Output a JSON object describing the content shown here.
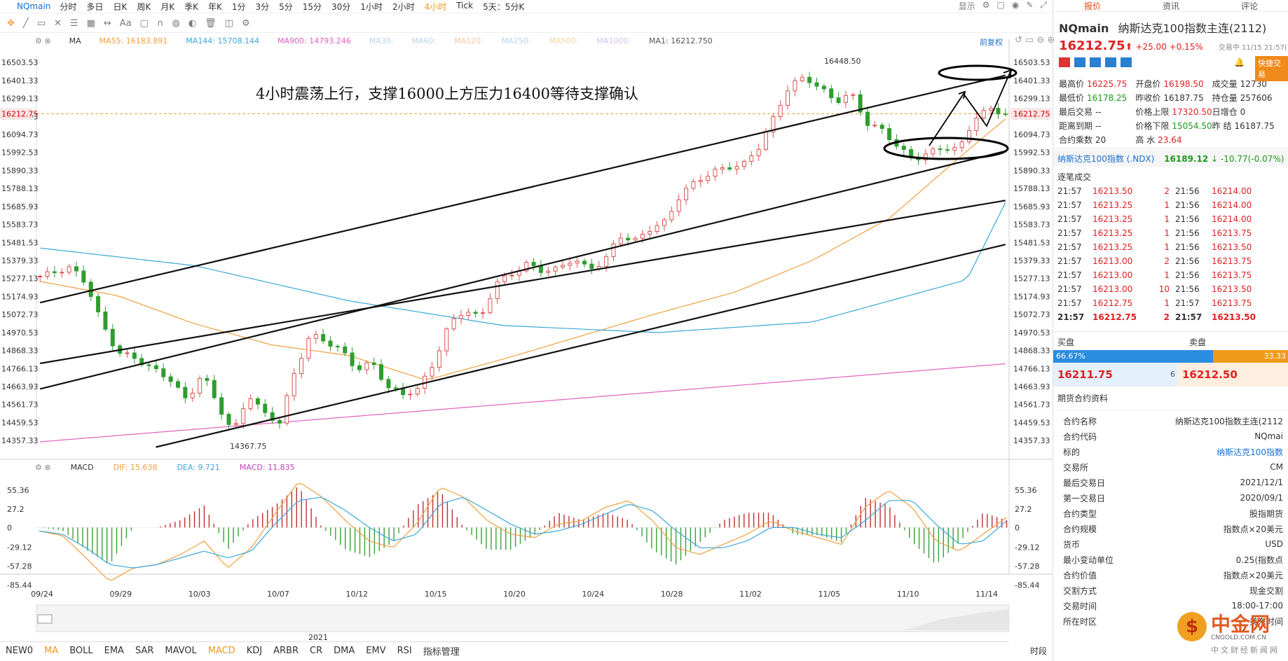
{
  "toolbar": {
    "symbol": "NQmain",
    "periods": [
      "分时",
      "多日",
      "日K",
      "周K",
      "月K",
      "季K",
      "年K",
      "1分",
      "3分",
      "5分",
      "15分",
      "30分",
      "1小时",
      "2小时",
      "4小时",
      "Tick",
      "5天：5分K"
    ],
    "active_period": "4小时",
    "display_label": "显示"
  },
  "drawbar": {
    "text_tool": "Aa"
  },
  "main_legend": {
    "ma_label": "MA",
    "items": [
      {
        "text": "MA55: 16183.891",
        "color": "#f0a040"
      },
      {
        "text": "MA144: 15708.144",
        "color": "#3aa8d8"
      },
      {
        "text": "MA900: 14793.246",
        "color": "#e060c0"
      },
      {
        "text": "MA30:",
        "color": "#b8d4ec"
      },
      {
        "text": "MA60:",
        "color": "#b8d4ec"
      },
      {
        "text": "MA120:",
        "color": "#f4c8a0"
      },
      {
        "text": "MA250:",
        "color": "#b8d4ec"
      },
      {
        "text": "MA500:",
        "color": "#f4d4a0"
      },
      {
        "text": "MA1000:",
        "color": "#d4c0ec"
      },
      {
        "text": "MA1: 16212.750",
        "color": "#555555"
      }
    ],
    "restore_label": "前复权"
  },
  "macd_legend": {
    "label": "MACD",
    "items": [
      {
        "text": "DIF: 15.638",
        "color": "#f0a040"
      },
      {
        "text": "DEA: 9.721",
        "color": "#3aa8d8"
      },
      {
        "text": "MACD: 11.835",
        "color": "#c040c0"
      }
    ]
  },
  "annotation": "4小时震荡上行，支撑16000上方压力16400等待支撑确认",
  "bottom_tabs": {
    "items": [
      "NEW0",
      "MA",
      "BOLL",
      "EMA",
      "SAR",
      "MAVOL",
      "MACD",
      "KDJ",
      "ARBR",
      "CR",
      "DMA",
      "EMV",
      "RSI",
      "指标管理"
    ],
    "active": [
      "MA",
      "MACD"
    ],
    "right_label": "时段"
  },
  "nav": {
    "year_label": "2021"
  },
  "watermark": {
    "brand": "中金网",
    "site": "CNGOLD.COM.CN",
    "slogan": "中文财经新闻网"
  },
  "chart_data": {
    "type": "candlestick",
    "title": "",
    "price_axis": {
      "ticks": [
        16503.53,
        16401.33,
        16299.13,
        16196.93,
        16094.73,
        15992.53,
        15890.33,
        15788.13,
        15685.93,
        15583.73,
        15481.53,
        15379.33,
        15277.13,
        15174.93,
        15072.73,
        14970.53,
        14868.33,
        14766.13,
        14663.93,
        14561.73,
        14459.53,
        14357.33
      ],
      "range": [
        14322,
        16540
      ],
      "current_label": "16212.75"
    },
    "x_axis": {
      "labels": [
        "09/24",
        "09/29",
        "10/03",
        "10/07",
        "10/12",
        "10/15",
        "10/20",
        "10/24",
        "10/28",
        "11/02",
        "11/05",
        "11/10",
        "11/14"
      ],
      "bars": 134
    },
    "annotations": {
      "high": "16448.50",
      "low": "14367.75"
    },
    "close_keypoints": [
      [
        0,
        15290
      ],
      [
        8,
        15340
      ],
      [
        12,
        15250
      ],
      [
        16,
        15020
      ],
      [
        20,
        14860
      ],
      [
        24,
        14830
      ],
      [
        28,
        14780
      ],
      [
        34,
        14700
      ],
      [
        38,
        14580
      ],
      [
        42,
        14740
      ],
      [
        46,
        14560
      ],
      [
        50,
        14400
      ],
      [
        54,
        14620
      ],
      [
        58,
        14510
      ],
      [
        62,
        14460
      ],
      [
        66,
        14750
      ],
      [
        70,
        14960
      ],
      [
        74,
        14920
      ],
      [
        78,
        14870
      ],
      [
        82,
        14760
      ],
      [
        86,
        14800
      ],
      [
        90,
        14660
      ],
      [
        94,
        14620
      ],
      [
        98,
        14650
      ],
      [
        102,
        14800
      ],
      [
        106,
        15020
      ],
      [
        110,
        15100
      ],
      [
        114,
        15050
      ],
      [
        118,
        15250
      ],
      [
        122,
        15300
      ],
      [
        126,
        15360
      ],
      [
        130,
        15320
      ],
      [
        134,
        15330
      ],
      [
        138,
        15390
      ],
      [
        142,
        15330
      ],
      [
        146,
        15370
      ],
      [
        150,
        15520
      ],
      [
        154,
        15490
      ],
      [
        158,
        15560
      ],
      [
        162,
        15600
      ],
      [
        166,
        15760
      ],
      [
        170,
        15830
      ],
      [
        174,
        15880
      ],
      [
        178,
        15910
      ],
      [
        182,
        15920
      ],
      [
        186,
        16020
      ],
      [
        190,
        16190
      ],
      [
        194,
        16370
      ],
      [
        198,
        16420
      ],
      [
        202,
        16360
      ],
      [
        206,
        16280
      ],
      [
        210,
        16330
      ],
      [
        214,
        16160
      ],
      [
        218,
        16120
      ],
      [
        222,
        16030
      ],
      [
        226,
        15950
      ],
      [
        230,
        15990
      ],
      [
        234,
        16020
      ],
      [
        238,
        16010
      ],
      [
        242,
        16190
      ],
      [
        246,
        16240
      ],
      [
        250,
        16212
      ]
    ],
    "series": [
      {
        "name": "MA55",
        "color": "#f0a040",
        "keypoints": [
          [
            0,
            15260
          ],
          [
            20,
            15180
          ],
          [
            40,
            15020
          ],
          [
            60,
            14900
          ],
          [
            80,
            14840
          ],
          [
            100,
            14700
          ],
          [
            120,
            14820
          ],
          [
            140,
            14950
          ],
          [
            160,
            15080
          ],
          [
            180,
            15200
          ],
          [
            200,
            15380
          ],
          [
            220,
            15620
          ],
          [
            240,
            16000
          ],
          [
            250,
            16183
          ]
        ]
      },
      {
        "name": "MA144",
        "color": "#3aa8d8",
        "keypoints": [
          [
            0,
            15450
          ],
          [
            40,
            15350
          ],
          [
            80,
            15150
          ],
          [
            120,
            15010
          ],
          [
            160,
            14970
          ],
          [
            200,
            15030
          ],
          [
            240,
            15270
          ],
          [
            250,
            15708
          ]
        ]
      },
      {
        "name": "MA900",
        "color": "#e060c0",
        "keypoints": [
          [
            0,
            14350
          ],
          [
            250,
            14793
          ]
        ]
      }
    ],
    "drawn_lines": [
      {
        "name": "upper-channel-top",
        "points": [
          [
            0,
            15140
          ],
          [
            250,
            16430
          ]
        ]
      },
      {
        "name": "upper-channel-bottom",
        "points": [
          [
            0,
            14650
          ],
          [
            250,
            16000
          ]
        ]
      },
      {
        "name": "lower-channel-top",
        "points": [
          [
            0,
            14795
          ],
          [
            250,
            15720
          ]
        ]
      },
      {
        "name": "lower-channel-bottom",
        "points": [
          [
            30,
            14320
          ],
          [
            250,
            15470
          ]
        ]
      }
    ],
    "macd": {
      "axis_ticks": [
        55.36,
        27.2,
        0.0,
        -29.12,
        -57.28,
        -85.44
      ],
      "range": [
        -92,
        72
      ],
      "dif_keypoints": [
        [
          0,
          -5
        ],
        [
          10,
          -12
        ],
        [
          20,
          -45
        ],
        [
          30,
          -80
        ],
        [
          40,
          -60
        ],
        [
          50,
          -55
        ],
        [
          60,
          -40
        ],
        [
          70,
          -20
        ],
        [
          80,
          -60
        ],
        [
          90,
          -30
        ],
        [
          100,
          20
        ],
        [
          110,
          68
        ],
        [
          120,
          45
        ],
        [
          130,
          10
        ],
        [
          140,
          -20
        ],
        [
          150,
          -30
        ],
        [
          160,
          5
        ],
        [
          170,
          60
        ],
        [
          180,
          45
        ],
        [
          190,
          10
        ],
        [
          200,
          -10
        ],
        [
          210,
          -15
        ],
        [
          220,
          5
        ],
        [
          230,
          10
        ],
        [
          240,
          30
        ],
        [
          250,
          40
        ],
        [
          260,
          10
        ],
        [
          270,
          -30
        ],
        [
          280,
          -40
        ],
        [
          290,
          -25
        ],
        [
          300,
          -10
        ],
        [
          310,
          10
        ],
        [
          320,
          -5
        ],
        [
          330,
          -15
        ],
        [
          340,
          -25
        ],
        [
          350,
          30
        ],
        [
          360,
          55
        ],
        [
          370,
          30
        ],
        [
          380,
          -20
        ],
        [
          390,
          -35
        ],
        [
          400,
          -10
        ],
        [
          410,
          15
        ]
      ],
      "dea_keypoints": [
        [
          0,
          -5
        ],
        [
          10,
          -10
        ],
        [
          20,
          -30
        ],
        [
          30,
          -55
        ],
        [
          40,
          -60
        ],
        [
          50,
          -55
        ],
        [
          60,
          -45
        ],
        [
          70,
          -35
        ],
        [
          80,
          -45
        ],
        [
          90,
          -35
        ],
        [
          100,
          5
        ],
        [
          110,
          40
        ],
        [
          120,
          45
        ],
        [
          130,
          25
        ],
        [
          140,
          0
        ],
        [
          150,
          -20
        ],
        [
          160,
          -10
        ],
        [
          170,
          35
        ],
        [
          180,
          45
        ],
        [
          190,
          25
        ],
        [
          200,
          5
        ],
        [
          210,
          -10
        ],
        [
          220,
          -5
        ],
        [
          230,
          5
        ],
        [
          240,
          20
        ],
        [
          250,
          35
        ],
        [
          260,
          25
        ],
        [
          270,
          -5
        ],
        [
          280,
          -30
        ],
        [
          290,
          -30
        ],
        [
          300,
          -20
        ],
        [
          310,
          0
        ],
        [
          320,
          0
        ],
        [
          330,
          -10
        ],
        [
          340,
          -15
        ],
        [
          350,
          10
        ],
        [
          360,
          40
        ],
        [
          370,
          40
        ],
        [
          380,
          5
        ],
        [
          390,
          -25
        ],
        [
          400,
          -20
        ],
        [
          410,
          10
        ]
      ]
    }
  },
  "panel": {
    "tabs": [
      "报价",
      "资讯",
      "评论"
    ],
    "symbol": "NQmain",
    "name": "纳斯达克100指数主连(2112)",
    "price": "16212.75",
    "change": "+25.00 +0.15%",
    "time_info": "交易中 11/15 21:57(",
    "quick_trade": "快捷交易",
    "quote_rows": [
      [
        [
          "最高价",
          "16225.75",
          "red"
        ],
        [
          "开盘价",
          "16198.50",
          "red"
        ],
        [
          "成交量",
          "12730",
          ""
        ]
      ],
      [
        [
          "最低价",
          "16178.25",
          "green"
        ],
        [
          "昨收价",
          "16187.75",
          ""
        ],
        [
          "持仓量",
          "257606",
          ""
        ]
      ],
      [
        [
          "最后交易",
          "--",
          ""
        ],
        [
          "价格上限",
          "17320.50",
          "red"
        ],
        [
          "日增仓",
          "0",
          ""
        ]
      ],
      [
        [
          "距离到期",
          "--",
          ""
        ],
        [
          "价格下限",
          "15054.50",
          "green"
        ],
        [
          "昨 结",
          "16187.75",
          ""
        ]
      ],
      [
        [
          "合约乘数",
          "20",
          ""
        ],
        [
          "高 水",
          "23.64",
          "red"
        ],
        [
          "",
          "",
          " "
        ]
      ]
    ],
    "index_name": "纳斯达克100指数 (.NDX)",
    "index_value": "16189.12",
    "index_change": "-10.77(-0.07%)",
    "trades_title": "逐笔成交",
    "trades": [
      [
        "21:57",
        "16213.50",
        "2",
        "21:56",
        "16214.00"
      ],
      [
        "21:57",
        "16213.25",
        "1",
        "21:56",
        "16214.00"
      ],
      [
        "21:57",
        "16213.25",
        "1",
        "21:56",
        "16214.00"
      ],
      [
        "21:57",
        "16213.25",
        "1",
        "21:56",
        "16213.75"
      ],
      [
        "21:57",
        "16213.25",
        "1",
        "21:56",
        "16213.50"
      ],
      [
        "21:57",
        "16213.00",
        "2",
        "21:56",
        "16213.75"
      ],
      [
        "21:57",
        "16213.00",
        "1",
        "21:56",
        "16213.75"
      ],
      [
        "21:57",
        "16213.00",
        "10",
        "21:56",
        "16213.50"
      ],
      [
        "21:57",
        "16212.75",
        "1",
        "21:57",
        "16213.75"
      ],
      [
        "21:57",
        "16212.75",
        "2",
        "21:57",
        "16213.50"
      ]
    ],
    "buy_label": "买盘",
    "sell_label": "卖盘",
    "buy_pct": "66.67%",
    "sell_pct": "33.33",
    "bid": "16211.75",
    "bid_vol": "6",
    "ask": "16212.50",
    "contract_title": "期货合约资料",
    "specs": [
      [
        "合约名称",
        "纳斯达克100指数主连(2112"
      ],
      [
        "合约代码",
        "NQmai"
      ],
      [
        "标的",
        "纳斯达克100指数"
      ],
      [
        "交易所",
        "CM"
      ],
      [
        "最后交易日",
        "2021/12/1"
      ],
      [
        "第一交易日",
        "2020/09/1"
      ],
      [
        "合约类型",
        "股指期货"
      ],
      [
        "合约规模",
        "指数点×20美元"
      ],
      [
        "货币",
        "USD"
      ],
      [
        "最小变动单位",
        "0.25(指数点"
      ],
      [
        "合约价值",
        "指数点×20美元"
      ],
      [
        "交割方式",
        "现金交割"
      ],
      [
        "交易时间",
        "18:00-17:00"
      ],
      [
        "所在时区",
        "美东时间"
      ]
    ]
  }
}
